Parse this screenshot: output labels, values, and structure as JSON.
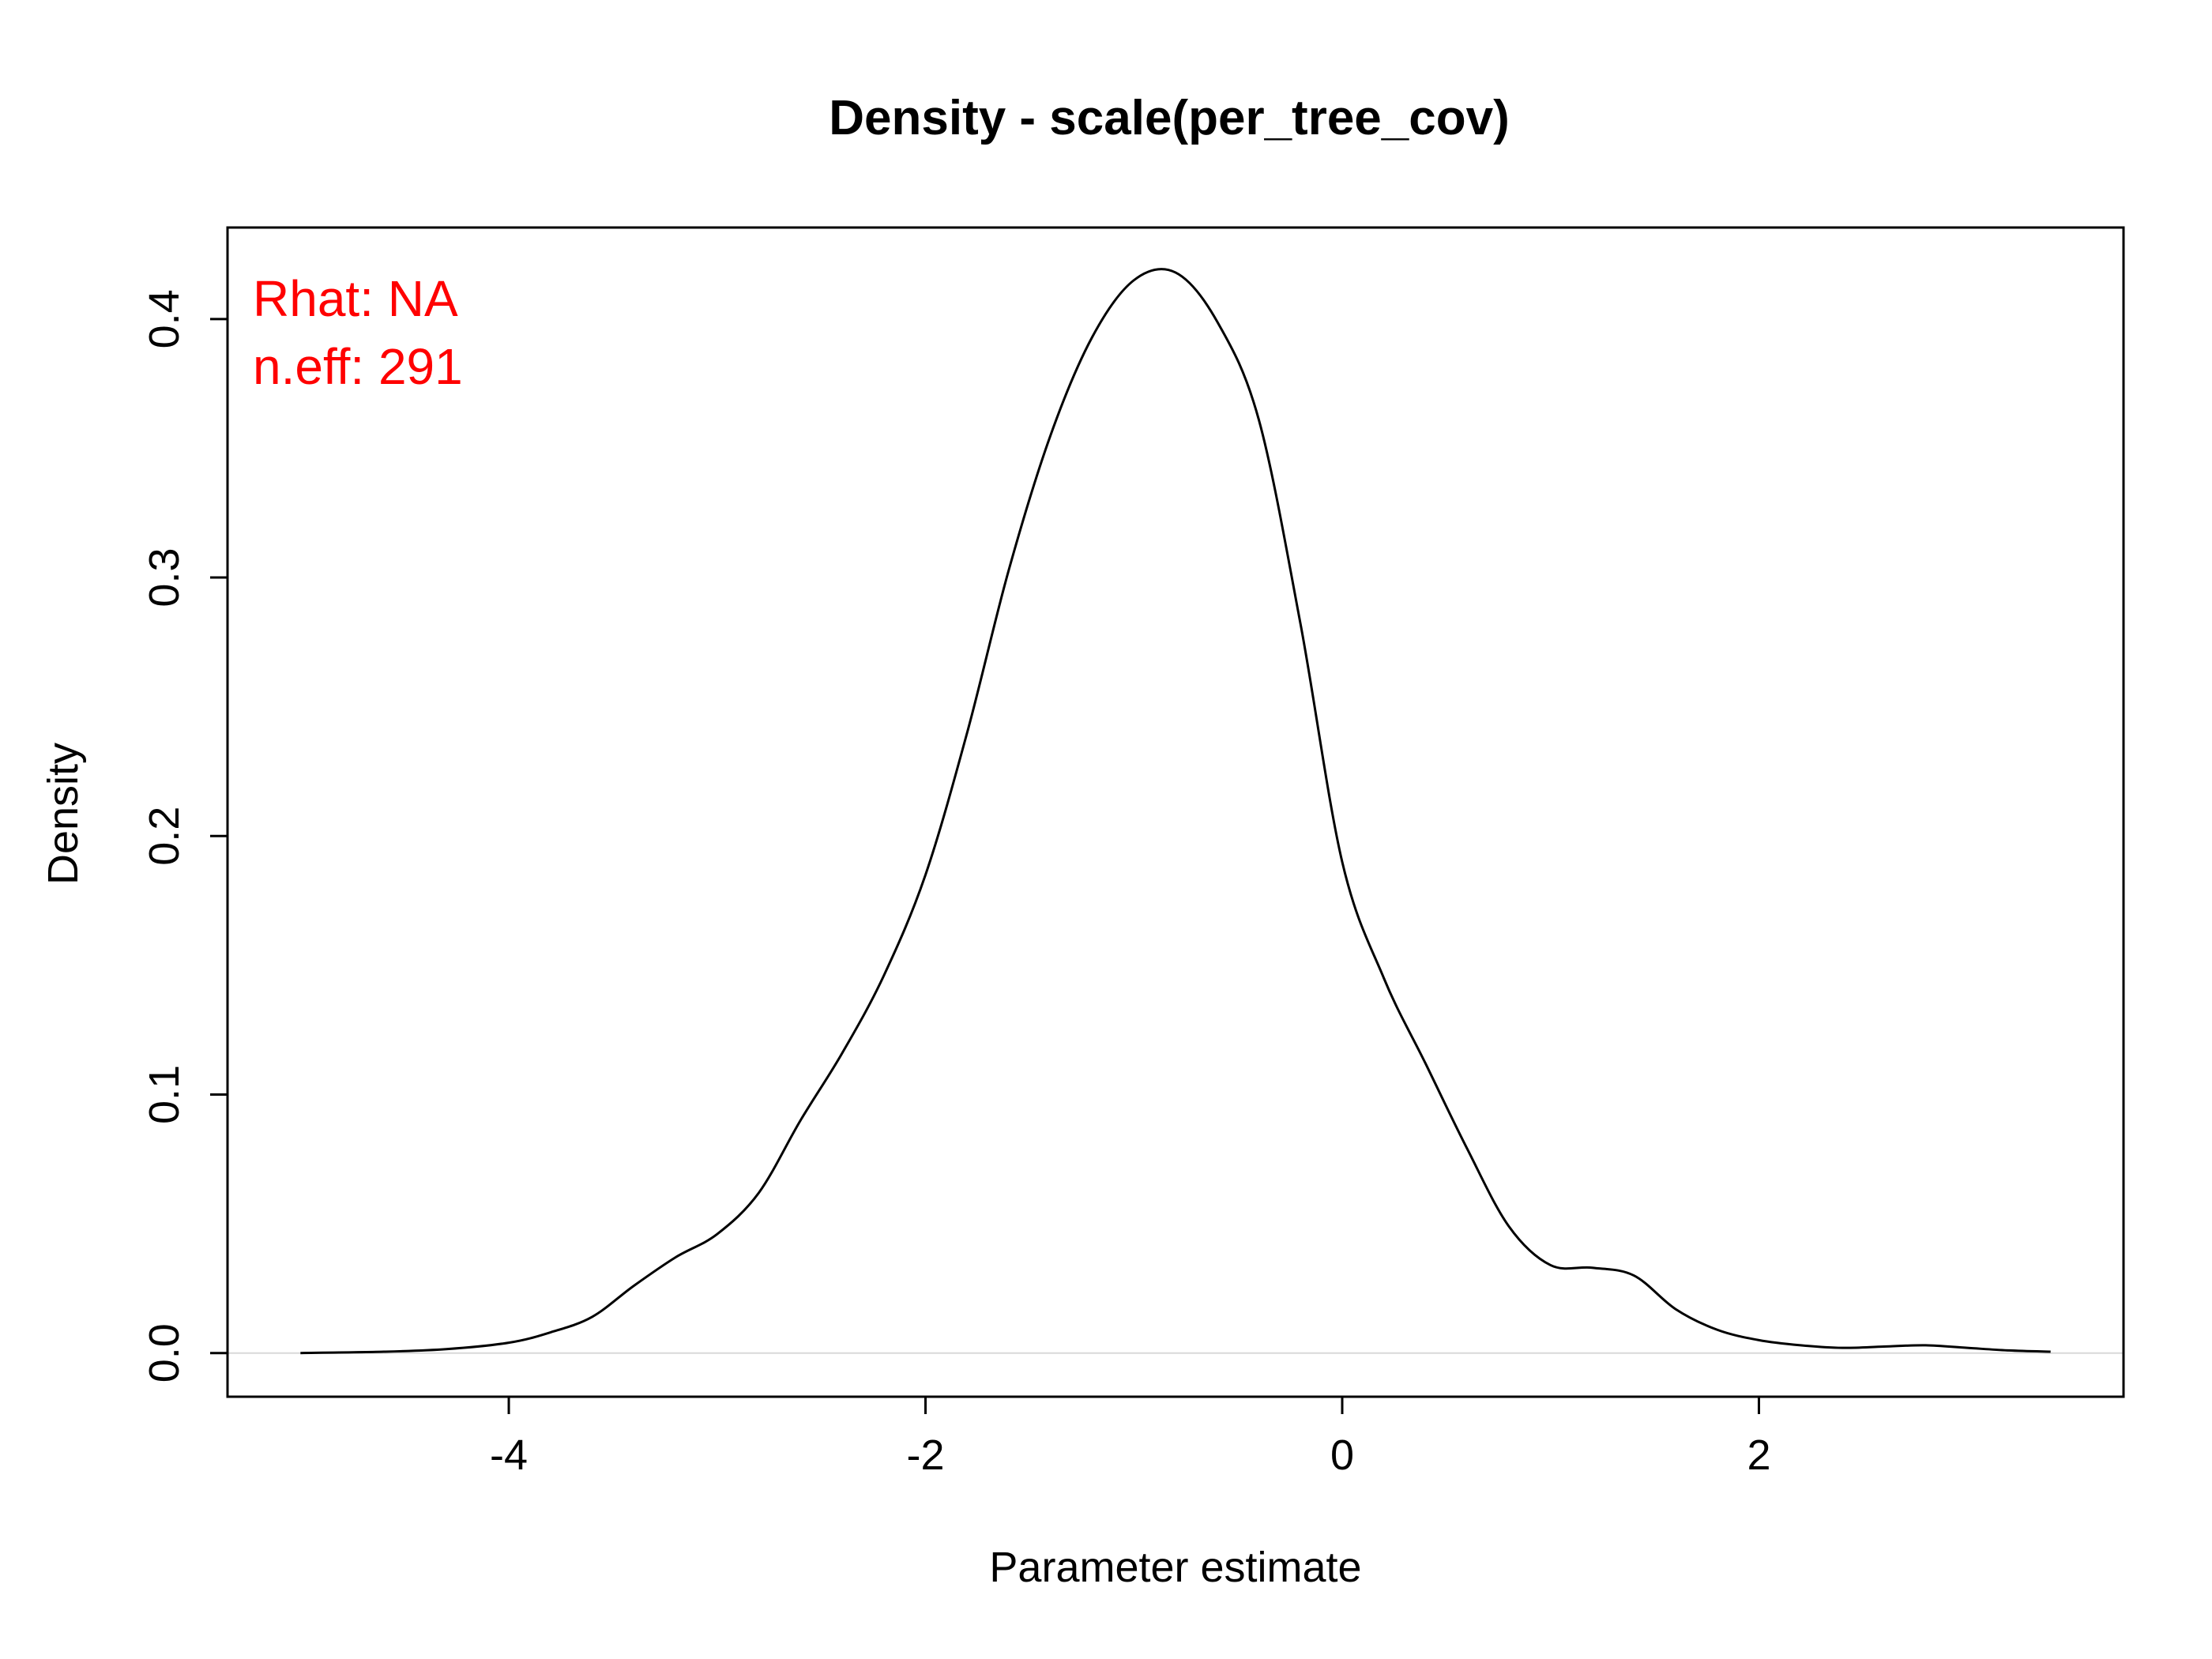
{
  "chart_data": {
    "type": "line",
    "title": "Density - scale(per_tree_cov)",
    "xlabel": "Parameter estimate",
    "ylabel": "Density",
    "xlim": [
      -5.35,
      3.75
    ],
    "ylim": [
      -0.0169,
      0.4354
    ],
    "x_ticks": [
      -4,
      -2,
      0,
      2
    ],
    "x_tick_labels": [
      "-4",
      "-2",
      "0",
      "2"
    ],
    "y_ticks": [
      0.0,
      0.1,
      0.2,
      0.3,
      0.4
    ],
    "y_tick_labels": [
      "0.0",
      "0.1",
      "0.2",
      "0.3",
      "0.4"
    ],
    "grid": false,
    "baseline_y": 0,
    "colors": {
      "line": "#000000",
      "annotation": "#ff0000",
      "baseline": "#d9d9d9"
    },
    "annotations": [
      {
        "name": "rhat",
        "text": "Rhat: NA"
      },
      {
        "name": "neff",
        "text": "n.eff: 291"
      }
    ],
    "series": [
      {
        "x": [
          -5.0,
          -4.6,
          -4.3,
          -4.0,
          -3.8,
          -3.6,
          -3.4,
          -3.2,
          -3.0,
          -2.8,
          -2.6,
          -2.4,
          -2.2,
          -2.0,
          -1.8,
          -1.6,
          -1.4,
          -1.2,
          -1.0,
          -0.8,
          -0.6,
          -0.4,
          -0.2,
          0.0,
          0.2,
          0.4,
          0.6,
          0.8,
          1.0,
          1.2,
          1.4,
          1.6,
          1.8,
          2.0,
          2.2,
          2.4,
          2.6,
          2.8,
          3.0,
          3.2,
          3.4
        ],
        "y": [
          0.0,
          0.0005,
          0.0015,
          0.004,
          0.008,
          0.014,
          0.026,
          0.037,
          0.046,
          0.062,
          0.09,
          0.116,
          0.146,
          0.185,
          0.24,
          0.303,
          0.355,
          0.393,
          0.415,
          0.418,
          0.399,
          0.361,
          0.282,
          0.19,
          0.145,
          0.112,
          0.079,
          0.049,
          0.034,
          0.033,
          0.03,
          0.017,
          0.009,
          0.005,
          0.003,
          0.002,
          0.0025,
          0.003,
          0.002,
          0.001,
          0.0005
        ]
      }
    ]
  }
}
